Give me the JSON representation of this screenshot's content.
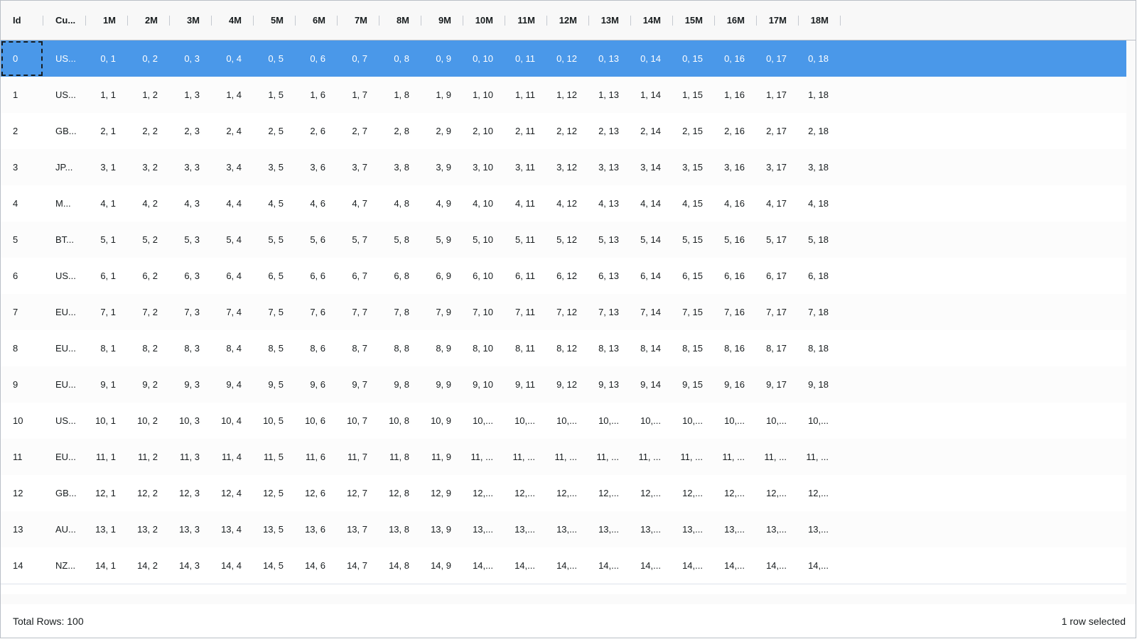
{
  "grid": {
    "columns": [
      "Id",
      "Cu...",
      "1M",
      "2M",
      "3M",
      "4M",
      "5M",
      "6M",
      "7M",
      "8M",
      "9M",
      "10M",
      "11M",
      "12M",
      "13M",
      "14M",
      "15M",
      "16M",
      "17M",
      "18M"
    ],
    "rows": [
      [
        "0",
        "US...",
        "0, 1",
        "0, 2",
        "0, 3",
        "0, 4",
        "0, 5",
        "0, 6",
        "0, 7",
        "0, 8",
        "0, 9",
        "0, 10",
        "0, 11",
        "0, 12",
        "0, 13",
        "0, 14",
        "0, 15",
        "0, 16",
        "0, 17",
        "0, 18"
      ],
      [
        "1",
        "US...",
        "1, 1",
        "1, 2",
        "1, 3",
        "1, 4",
        "1, 5",
        "1, 6",
        "1, 7",
        "1, 8",
        "1, 9",
        "1, 10",
        "1, 11",
        "1, 12",
        "1, 13",
        "1, 14",
        "1, 15",
        "1, 16",
        "1, 17",
        "1, 18"
      ],
      [
        "2",
        "GB...",
        "2, 1",
        "2, 2",
        "2, 3",
        "2, 4",
        "2, 5",
        "2, 6",
        "2, 7",
        "2, 8",
        "2, 9",
        "2, 10",
        "2, 11",
        "2, 12",
        "2, 13",
        "2, 14",
        "2, 15",
        "2, 16",
        "2, 17",
        "2, 18"
      ],
      [
        "3",
        "JP...",
        "3, 1",
        "3, 2",
        "3, 3",
        "3, 4",
        "3, 5",
        "3, 6",
        "3, 7",
        "3, 8",
        "3, 9",
        "3, 10",
        "3, 11",
        "3, 12",
        "3, 13",
        "3, 14",
        "3, 15",
        "3, 16",
        "3, 17",
        "3, 18"
      ],
      [
        "4",
        "M...",
        "4, 1",
        "4, 2",
        "4, 3",
        "4, 4",
        "4, 5",
        "4, 6",
        "4, 7",
        "4, 8",
        "4, 9",
        "4, 10",
        "4, 11",
        "4, 12",
        "4, 13",
        "4, 14",
        "4, 15",
        "4, 16",
        "4, 17",
        "4, 18"
      ],
      [
        "5",
        "BT...",
        "5, 1",
        "5, 2",
        "5, 3",
        "5, 4",
        "5, 5",
        "5, 6",
        "5, 7",
        "5, 8",
        "5, 9",
        "5, 10",
        "5, 11",
        "5, 12",
        "5, 13",
        "5, 14",
        "5, 15",
        "5, 16",
        "5, 17",
        "5, 18"
      ],
      [
        "6",
        "US...",
        "6, 1",
        "6, 2",
        "6, 3",
        "6, 4",
        "6, 5",
        "6, 6",
        "6, 7",
        "6, 8",
        "6, 9",
        "6, 10",
        "6, 11",
        "6, 12",
        "6, 13",
        "6, 14",
        "6, 15",
        "6, 16",
        "6, 17",
        "6, 18"
      ],
      [
        "7",
        "EU...",
        "7, 1",
        "7, 2",
        "7, 3",
        "7, 4",
        "7, 5",
        "7, 6",
        "7, 7",
        "7, 8",
        "7, 9",
        "7, 10",
        "7, 11",
        "7, 12",
        "7, 13",
        "7, 14",
        "7, 15",
        "7, 16",
        "7, 17",
        "7, 18"
      ],
      [
        "8",
        "EU...",
        "8, 1",
        "8, 2",
        "8, 3",
        "8, 4",
        "8, 5",
        "8, 6",
        "8, 7",
        "8, 8",
        "8, 9",
        "8, 10",
        "8, 11",
        "8, 12",
        "8, 13",
        "8, 14",
        "8, 15",
        "8, 16",
        "8, 17",
        "8, 18"
      ],
      [
        "9",
        "EU...",
        "9, 1",
        "9, 2",
        "9, 3",
        "9, 4",
        "9, 5",
        "9, 6",
        "9, 7",
        "9, 8",
        "9, 9",
        "9, 10",
        "9, 11",
        "9, 12",
        "9, 13",
        "9, 14",
        "9, 15",
        "9, 16",
        "9, 17",
        "9, 18"
      ],
      [
        "10",
        "US...",
        "10, 1",
        "10, 2",
        "10, 3",
        "10, 4",
        "10, 5",
        "10, 6",
        "10, 7",
        "10, 8",
        "10, 9",
        "10,...",
        "10,...",
        "10,...",
        "10,...",
        "10,...",
        "10,...",
        "10,...",
        "10,...",
        "10,..."
      ],
      [
        "11",
        "EU...",
        "11, 1",
        "11, 2",
        "11, 3",
        "11, 4",
        "11, 5",
        "11, 6",
        "11, 7",
        "11, 8",
        "11, 9",
        "11, ...",
        "11, ...",
        "11, ...",
        "11, ...",
        "11, ...",
        "11, ...",
        "11, ...",
        "11, ...",
        "11, ..."
      ],
      [
        "12",
        "GB...",
        "12, 1",
        "12, 2",
        "12, 3",
        "12, 4",
        "12, 5",
        "12, 6",
        "12, 7",
        "12, 8",
        "12, 9",
        "12,...",
        "12,...",
        "12,...",
        "12,...",
        "12,...",
        "12,...",
        "12,...",
        "12,...",
        "12,..."
      ],
      [
        "13",
        "AU...",
        "13, 1",
        "13, 2",
        "13, 3",
        "13, 4",
        "13, 5",
        "13, 6",
        "13, 7",
        "13, 8",
        "13, 9",
        "13,...",
        "13,...",
        "13,...",
        "13,...",
        "13,...",
        "13,...",
        "13,...",
        "13,...",
        "13,..."
      ],
      [
        "14",
        "NZ...",
        "14, 1",
        "14, 2",
        "14, 3",
        "14, 4",
        "14, 5",
        "14, 6",
        "14, 7",
        "14, 8",
        "14, 9",
        "14,...",
        "14,...",
        "14,...",
        "14,...",
        "14,...",
        "14,...",
        "14,...",
        "14,...",
        "14,..."
      ]
    ],
    "selected_row": 0,
    "focused_row": 0,
    "focused_col": 0,
    "selection_color": "#4a98e9"
  },
  "footer": {
    "total_rows": "Total Rows: 100",
    "selection_status": "1 row selected"
  }
}
